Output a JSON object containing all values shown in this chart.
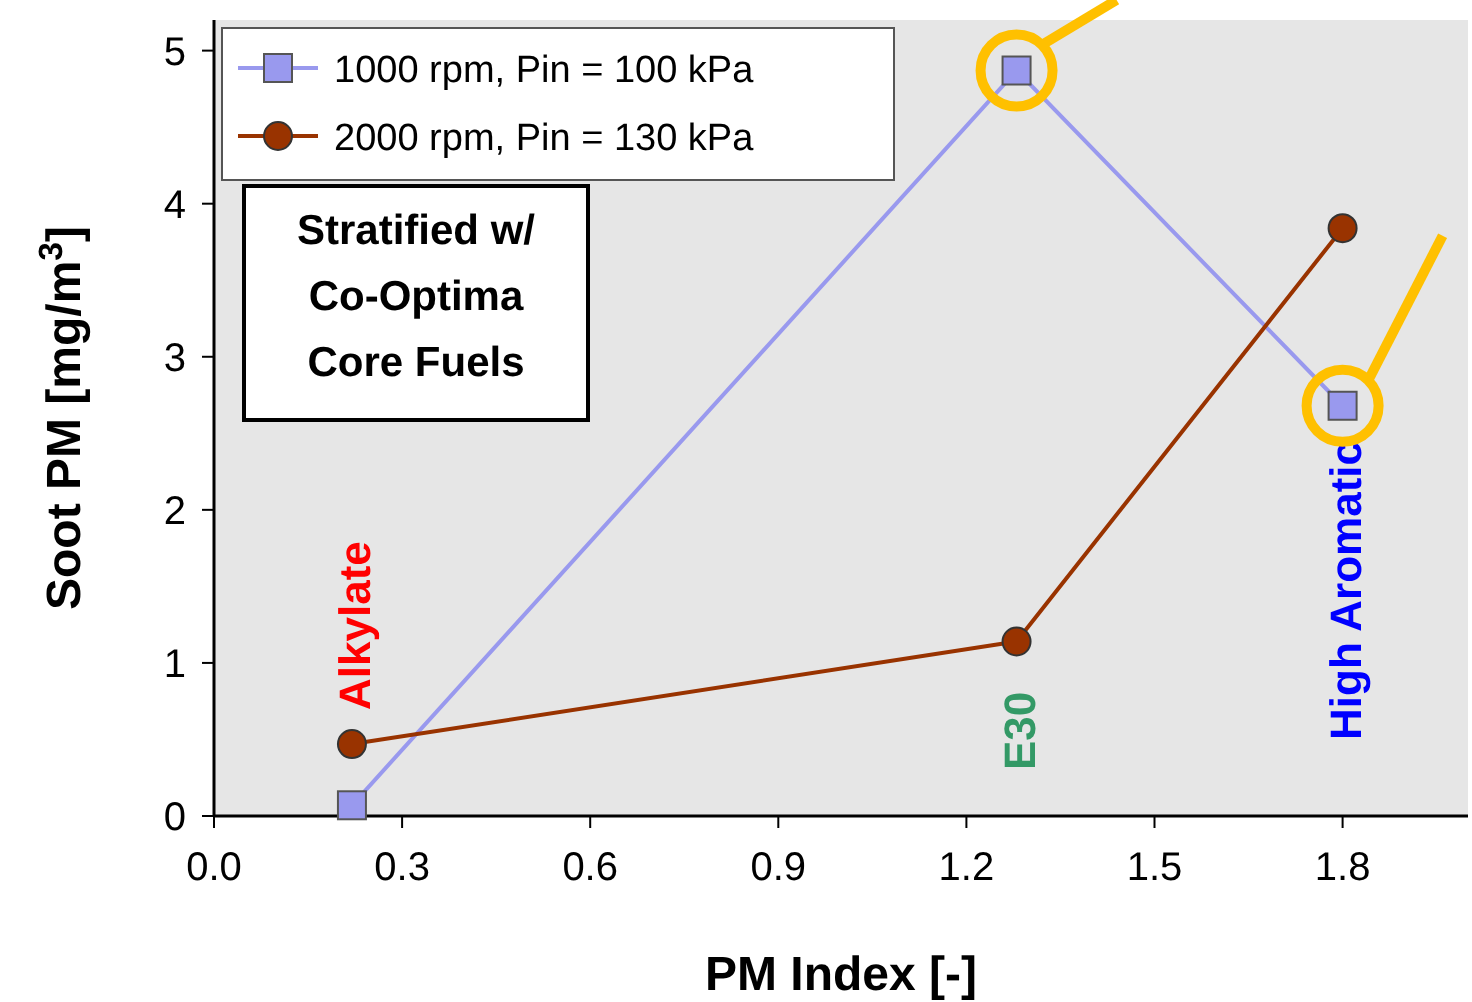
{
  "chart_data": {
    "type": "line",
    "xlabel": "PM Index [-]",
    "ylabel": "Soot PM [mg/m$^{3}$]",
    "xlim": [
      0,
      2.0
    ],
    "xticks": [
      {
        "value": 0,
        "label": "0.0"
      },
      0.3,
      0.6,
      0.9,
      1.2,
      1.5,
      1.8
    ],
    "ylim": [
      0,
      5.2
    ],
    "yticks": [
      0,
      1,
      2,
      3,
      4,
      5
    ],
    "grid": false,
    "legend": "top left",
    "line_style": "solid",
    "series": [
      {
        "name": "1000 rpm, Pin = 100 kPa",
        "color": "#9999ee",
        "marker": "square",
        "x": [
          0.22,
          1.28,
          1.8
        ],
        "values": [
          0.07,
          4.87,
          2.68
        ]
      },
      {
        "name": "2000 rpm, Pin = 130 kPa",
        "color": "#993300",
        "marker": "circle",
        "x": [
          0.22,
          1.28,
          1.8
        ],
        "values": [
          0.47,
          1.14,
          3.84
        ]
      }
    ],
    "annotations": [
      "Stratified w/\nCo-Optima\nCore Fuels",
      "Alkylate",
      "E30",
      "High Aromatic"
    ]
  }
}
